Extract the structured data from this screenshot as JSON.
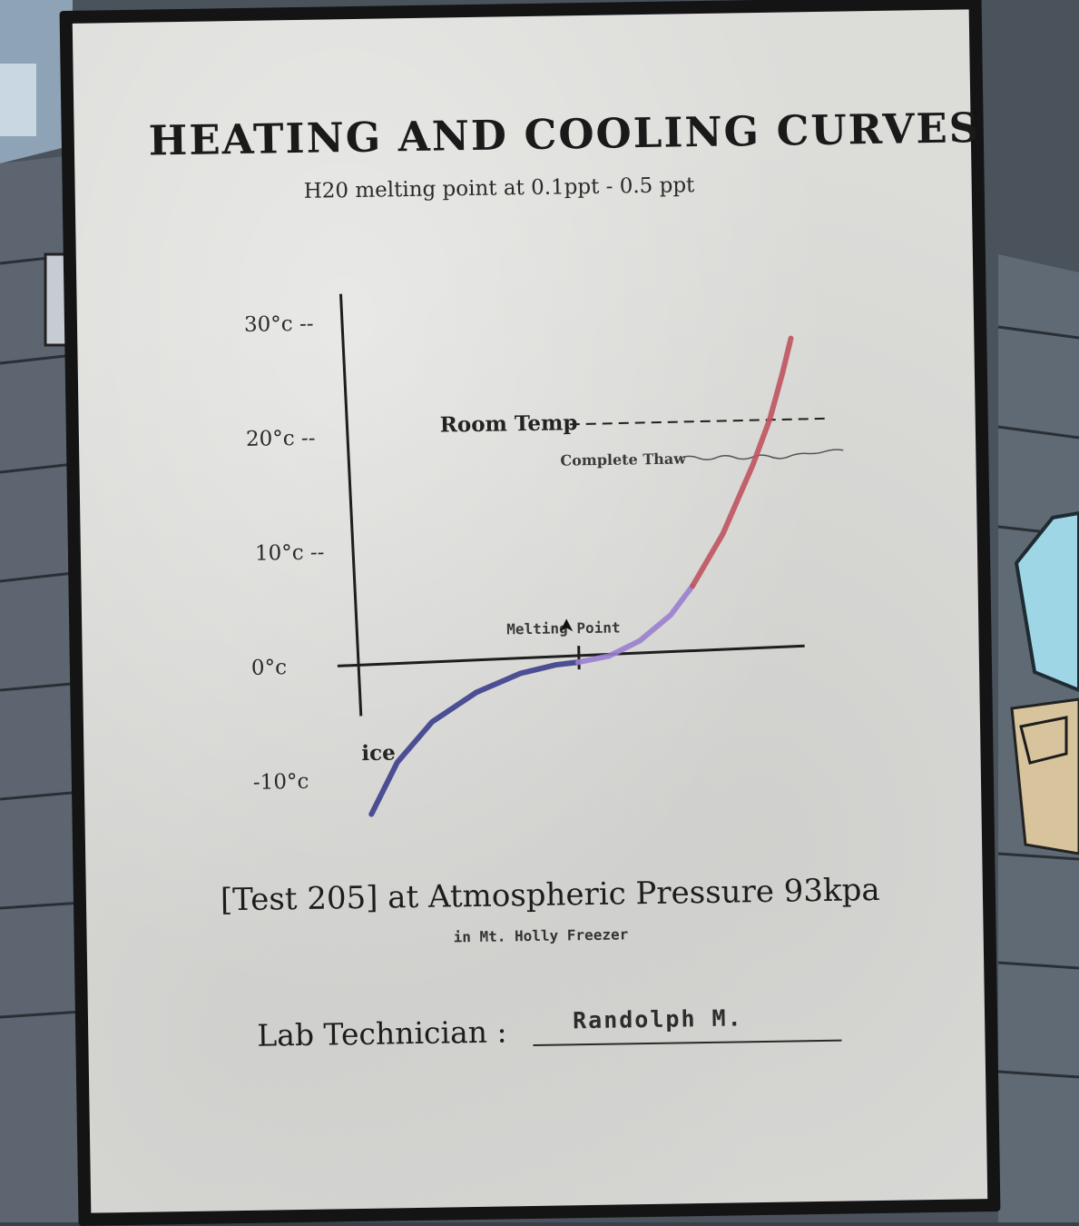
{
  "colors": {
    "cold": "#3c3f8c",
    "melt": "#9a7fd0",
    "hot": "#c0535f",
    "ink": "#1e1e1e",
    "paper": "#dcdcd9"
  },
  "document": {
    "title": "HEATING AND COOLING CURVES",
    "subtitle": "H20 melting point at 0.1ppt -  0.5 ppt",
    "test_line": "[Test 205] at Atmospheric Pressure 93kpa",
    "location": "in Mt. Holly Freezer",
    "lab_label": "Lab Technician :",
    "lab_name": "Randolph  M."
  },
  "chart_data": {
    "type": "line",
    "title": "HEATING AND COOLING CURVES",
    "subtitle": "H20 melting point at 0.1ppt -  0.5 ppt",
    "ytick_labels": [
      "30°c --",
      "20°c --",
      "10°c --",
      "0°c",
      "-10°c"
    ],
    "yticks": [
      30,
      20,
      10,
      0,
      -10
    ],
    "ylim": [
      -13,
      33
    ],
    "xlim": [
      0,
      100
    ],
    "annotations": [
      {
        "text": "Room Temp",
        "y": 20,
        "style": "dashed"
      },
      {
        "text": "Complete Thaw",
        "y": 18
      },
      {
        "text": "Melting Point",
        "y": 0
      },
      {
        "text": "ice",
        "y": -7
      }
    ],
    "series": [
      {
        "segment": "cold",
        "x": [
          2,
          8,
          16,
          26,
          36,
          44,
          49
        ],
        "y": [
          -13,
          -8.5,
          -5,
          -2.5,
          -0.9,
          -0.2,
          0
        ]
      },
      {
        "segment": "melt",
        "x": [
          49,
          56,
          63,
          70,
          75
        ],
        "y": [
          0,
          0.5,
          1.8,
          4,
          6.5
        ]
      },
      {
        "segment": "hot",
        "x": [
          75,
          82,
          89,
          93,
          96,
          98
        ],
        "y": [
          6.5,
          11,
          17,
          21,
          25,
          28
        ]
      }
    ],
    "grid": false,
    "legend": "none"
  }
}
